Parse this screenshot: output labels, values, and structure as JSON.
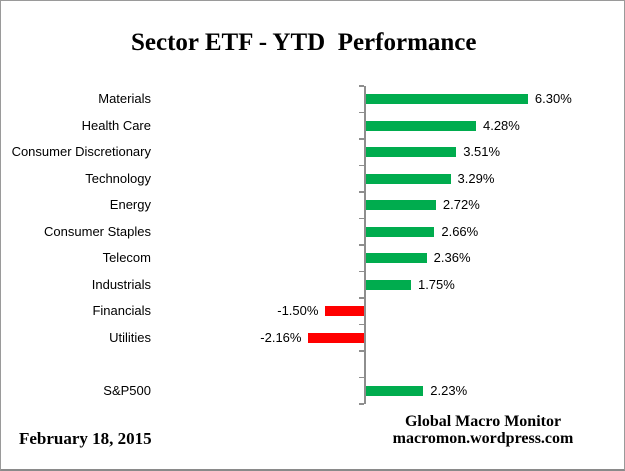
{
  "title": "Sector ETF - YTD  Performance",
  "footer": {
    "date": "February 18, 2015",
    "attribution_line1": "Global Macro Monitor",
    "attribution_line2": "macromon.wordpress.com"
  },
  "chart_data": {
    "type": "bar",
    "orientation": "horizontal",
    "title": "Sector ETF - YTD  Performance",
    "value_format": "percent",
    "value_axis_visible": false,
    "grid": false,
    "legend": "none",
    "series": [
      {
        "category": "Materials",
        "value": 6.3,
        "label": "6.30%"
      },
      {
        "category": "Health Care",
        "value": 4.28,
        "label": "4.28%"
      },
      {
        "category": "Consumer Discretionary",
        "value": 3.51,
        "label": "3.51%"
      },
      {
        "category": "Technology",
        "value": 3.29,
        "label": "3.29%"
      },
      {
        "category": "Energy",
        "value": 2.72,
        "label": "2.72%"
      },
      {
        "category": "Consumer Staples",
        "value": 2.66,
        "label": "2.66%"
      },
      {
        "category": "Telecom",
        "value": 2.36,
        "label": "2.36%"
      },
      {
        "category": "Industrials",
        "value": 1.75,
        "label": "1.75%"
      },
      {
        "category": "Financials",
        "value": -1.5,
        "label": "-1.50%"
      },
      {
        "category": "Utilities",
        "value": -2.16,
        "label": "-2.16%"
      }
    ],
    "benchmark": {
      "category": "S&P500",
      "value": 2.23,
      "label": "2.23%"
    },
    "colors": {
      "positive": "#00AC4E",
      "negative": "#FF0000",
      "axis": "#8E8E8E"
    }
  }
}
